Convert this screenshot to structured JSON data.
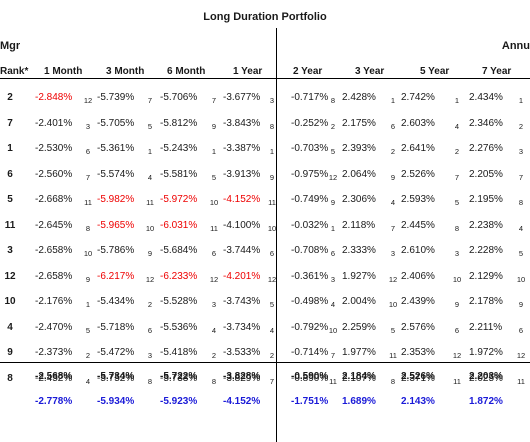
{
  "title": "Long Duration Portfolio",
  "header_left": "Mgr",
  "header_right": "Annu",
  "columns": [
    {
      "label": "Rank*"
    },
    {
      "label": "1 Month"
    },
    {
      "label": "3 Month"
    },
    {
      "label": "6 Month"
    },
    {
      "label": "1 Year"
    },
    {
      "label": "2 Year"
    },
    {
      "label": "3 Year"
    },
    {
      "label": "5 Year"
    },
    {
      "label": "7 Year"
    }
  ],
  "rows": [
    {
      "rank": "2",
      "cells": [
        [
          "-2.848%",
          "12",
          true
        ],
        [
          "-5.739%",
          "7",
          false
        ],
        [
          "-5.706%",
          "7",
          false
        ],
        [
          "-3.677%",
          "3",
          false
        ],
        [
          "-0.717%",
          "8",
          false
        ],
        [
          "2.428%",
          "1",
          false
        ],
        [
          "2.742%",
          "1",
          false
        ],
        [
          "2.434%",
          "1",
          false
        ]
      ]
    },
    {
      "rank": "7",
      "cells": [
        [
          "-2.401%",
          "3",
          false
        ],
        [
          "-5.705%",
          "5",
          false
        ],
        [
          "-5.812%",
          "9",
          false
        ],
        [
          "-3.843%",
          "8",
          false
        ],
        [
          "-0.252%",
          "2",
          false
        ],
        [
          "2.175%",
          "6",
          false
        ],
        [
          "2.603%",
          "4",
          false
        ],
        [
          "2.346%",
          "2",
          false
        ]
      ]
    },
    {
      "rank": "1",
      "cells": [
        [
          "-2.530%",
          "6",
          false
        ],
        [
          "-5.361%",
          "1",
          false
        ],
        [
          "-5.243%",
          "1",
          false
        ],
        [
          "-3.387%",
          "1",
          false
        ],
        [
          "-0.703%",
          "5",
          false
        ],
        [
          "2.393%",
          "2",
          false
        ],
        [
          "2.641%",
          "2",
          false
        ],
        [
          "2.276%",
          "3",
          false
        ]
      ]
    },
    {
      "rank": "6",
      "cells": [
        [
          "-2.560%",
          "7",
          false
        ],
        [
          "-5.574%",
          "4",
          false
        ],
        [
          "-5.581%",
          "5",
          false
        ],
        [
          "-3.913%",
          "9",
          false
        ],
        [
          "-0.975%",
          "12",
          false
        ],
        [
          "2.064%",
          "9",
          false
        ],
        [
          "2.526%",
          "7",
          false
        ],
        [
          "2.205%",
          "7",
          false
        ]
      ]
    },
    {
      "rank": "5",
      "cells": [
        [
          "-2.668%",
          "11",
          false
        ],
        [
          "-5.982%",
          "11",
          true
        ],
        [
          "-5.972%",
          "10",
          true
        ],
        [
          "-4.152%",
          "11",
          true
        ],
        [
          "-0.749%",
          "9",
          false
        ],
        [
          "2.306%",
          "4",
          false
        ],
        [
          "2.593%",
          "5",
          false
        ],
        [
          "2.195%",
          "8",
          false
        ]
      ]
    },
    {
      "rank": "11",
      "cells": [
        [
          "-2.645%",
          "8",
          false
        ],
        [
          "-5.965%",
          "10",
          true
        ],
        [
          "-6.031%",
          "11",
          true
        ],
        [
          "-4.100%",
          "10",
          false
        ],
        [
          "-0.032%",
          "1",
          false
        ],
        [
          "2.118%",
          "7",
          false
        ],
        [
          "2.445%",
          "8",
          false
        ],
        [
          "2.238%",
          "4",
          false
        ]
      ]
    },
    {
      "rank": "3",
      "cells": [
        [
          "-2.658%",
          "10",
          false
        ],
        [
          "-5.786%",
          "9",
          false
        ],
        [
          "-5.684%",
          "6",
          false
        ],
        [
          "-3.744%",
          "6",
          false
        ],
        [
          "-0.708%",
          "6",
          false
        ],
        [
          "2.333%",
          "3",
          false
        ],
        [
          "2.610%",
          "3",
          false
        ],
        [
          "2.228%",
          "5",
          false
        ]
      ]
    },
    {
      "rank": "12",
      "cells": [
        [
          "-2.658%",
          "9",
          false
        ],
        [
          "-6.217%",
          "12",
          true
        ],
        [
          "-6.233%",
          "12",
          true
        ],
        [
          "-4.201%",
          "12",
          true
        ],
        [
          "-0.361%",
          "3",
          false
        ],
        [
          "1.927%",
          "12",
          false
        ],
        [
          "2.406%",
          "10",
          false
        ],
        [
          "2.129%",
          "10",
          false
        ]
      ]
    },
    {
      "rank": "10",
      "cells": [
        [
          "-2.176%",
          "1",
          false
        ],
        [
          "-5.434%",
          "2",
          false
        ],
        [
          "-5.528%",
          "3",
          false
        ],
        [
          "-3.743%",
          "5",
          false
        ],
        [
          "-0.498%",
          "4",
          false
        ],
        [
          "2.004%",
          "10",
          false
        ],
        [
          "2.439%",
          "9",
          false
        ],
        [
          "2.178%",
          "9",
          false
        ]
      ]
    },
    {
      "rank": "4",
      "cells": [
        [
          "-2.470%",
          "5",
          false
        ],
        [
          "-5.718%",
          "6",
          false
        ],
        [
          "-5.536%",
          "4",
          false
        ],
        [
          "-3.734%",
          "4",
          false
        ],
        [
          "-0.792%",
          "10",
          false
        ],
        [
          "2.259%",
          "5",
          false
        ],
        [
          "2.576%",
          "6",
          false
        ],
        [
          "2.211%",
          "6",
          false
        ]
      ]
    },
    {
      "rank": "9",
      "cells": [
        [
          "-2.373%",
          "2",
          false
        ],
        [
          "-5.472%",
          "3",
          false
        ],
        [
          "-5.418%",
          "2",
          false
        ],
        [
          "-3.533%",
          "2",
          false
        ],
        [
          "-0.714%",
          "7",
          false
        ],
        [
          "1.977%",
          "11",
          false
        ],
        [
          "2.353%",
          "12",
          false
        ],
        [
          "1.972%",
          "12",
          false
        ]
      ]
    },
    {
      "rank": "8",
      "cells": [
        [
          "-2.452%",
          "4",
          false
        ],
        [
          "-5.752%",
          "8",
          false
        ],
        [
          "-5.733%",
          "8",
          false
        ],
        [
          "-3.829%",
          "7",
          false
        ],
        [
          "-0.890%",
          "11",
          false
        ],
        [
          "2.107%",
          "8",
          false
        ],
        [
          "2.371%",
          "11",
          false
        ],
        [
          "2.025%",
          "11",
          false
        ]
      ]
    }
  ],
  "summary_rows": [
    {
      "values": [
        "-2.568%",
        "-5.734%",
        "-5.722%",
        "-3.828%",
        "-0.590%",
        "2.184%",
        "2.526%",
        "2.203%"
      ],
      "color": "#1a1a1a"
    },
    {
      "values": [
        "-2.778%",
        "-5.934%",
        "-5.923%",
        "-4.152%",
        "-1.751%",
        "1.689%",
        "2.143%",
        "1.872%"
      ],
      "color": "#1a1ad8"
    }
  ],
  "colors": {
    "highlight": "#ee0000",
    "benchmark": "#1a1ad8"
  }
}
